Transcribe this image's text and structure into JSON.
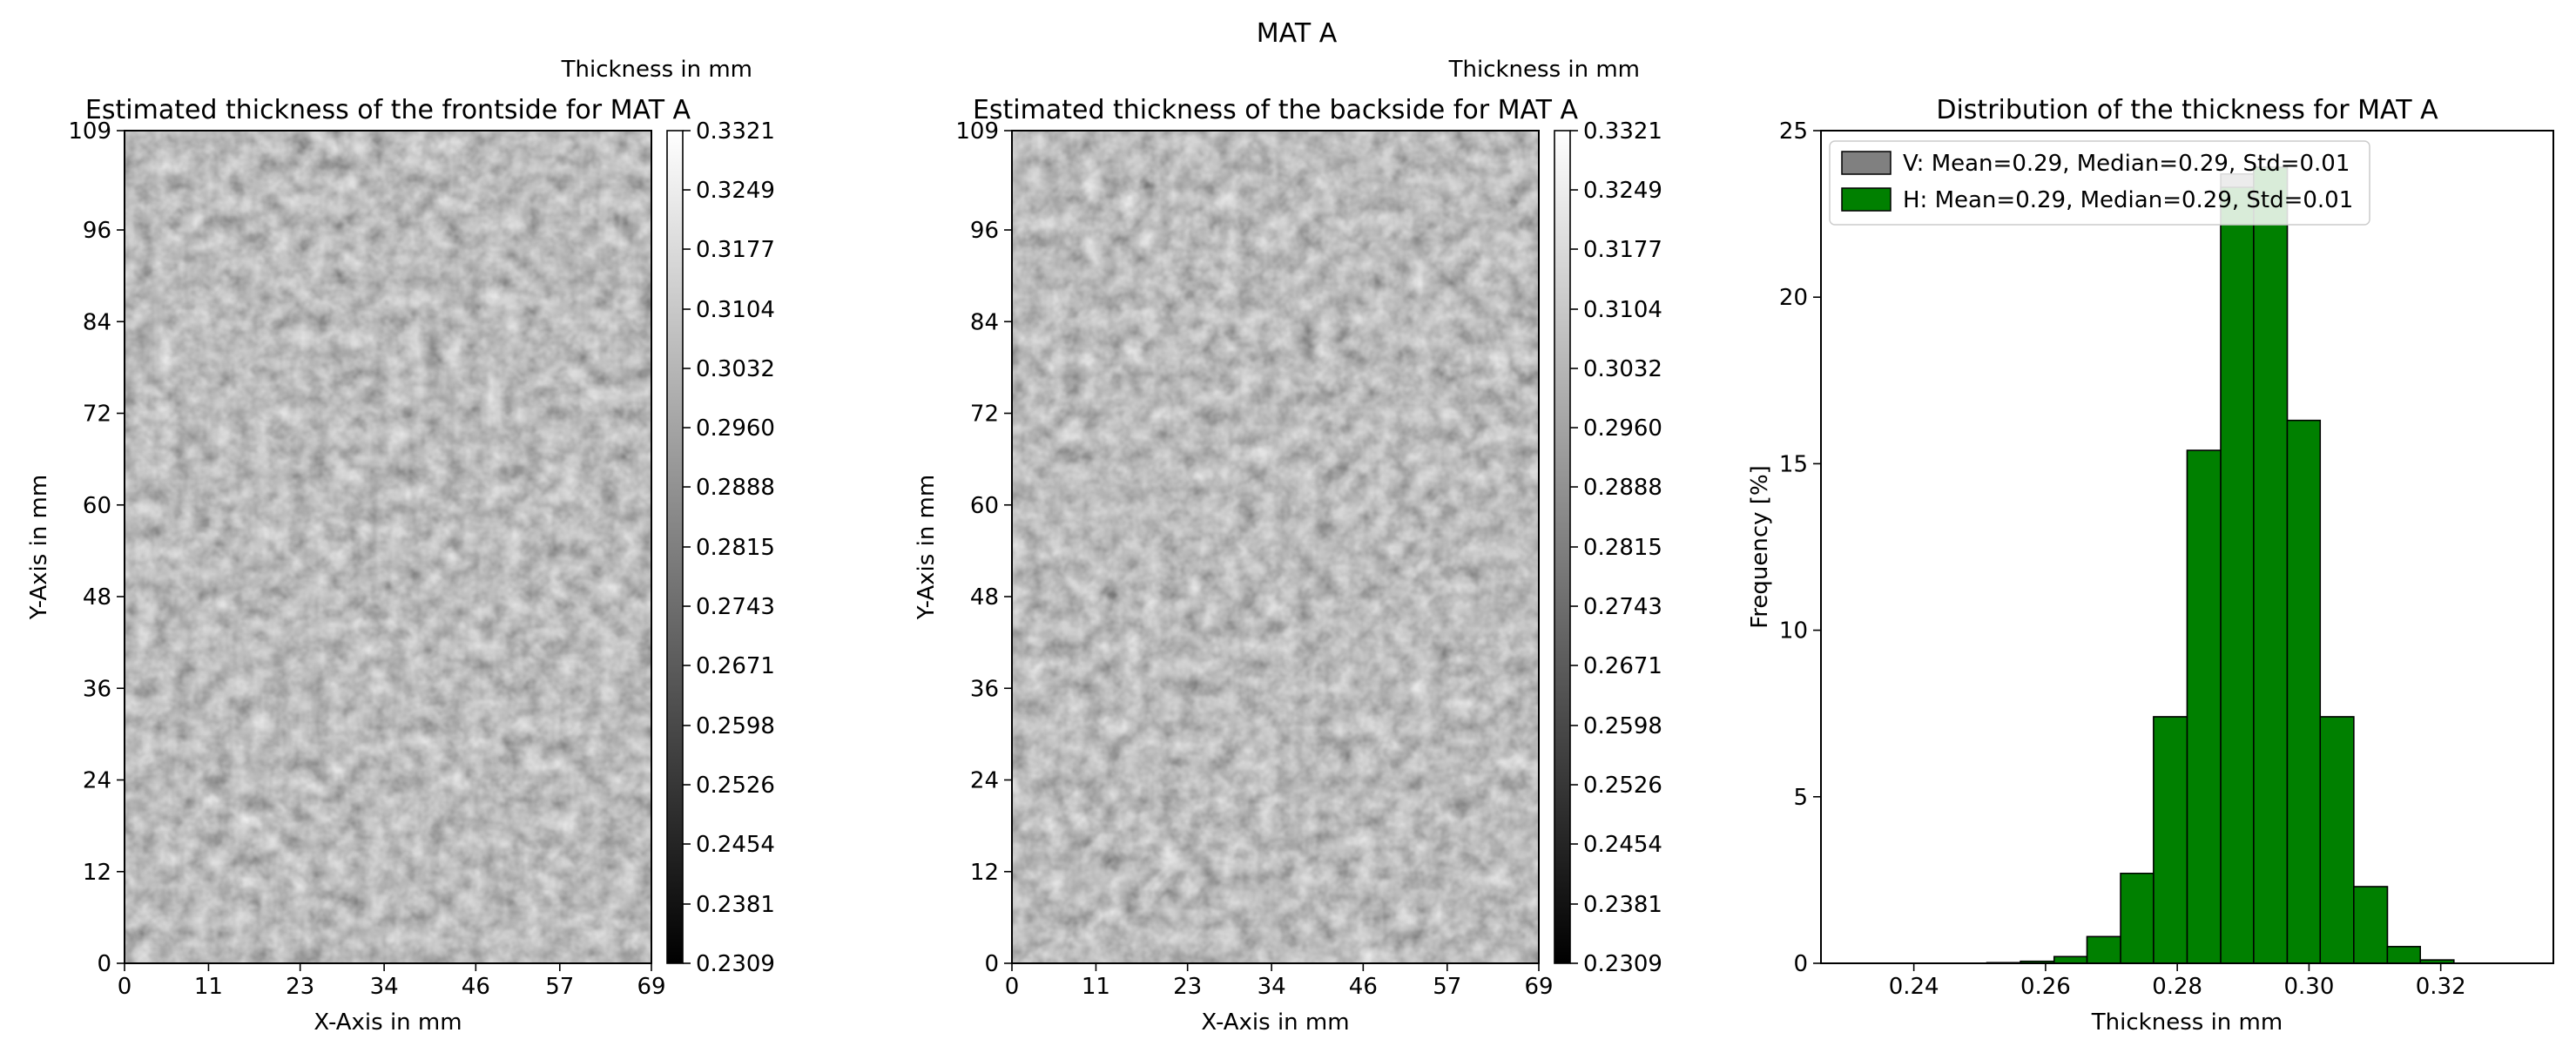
{
  "figure": {
    "suptitle": "MAT A"
  },
  "colors": {
    "hist_fill": "#008000",
    "hist_edge": "#000000",
    "legend_v_fill": "#808080"
  },
  "chart_data": [
    {
      "type": "heatmap",
      "title": "Estimated thickness of the frontside for MAT A",
      "xlabel": "X-Axis in mm",
      "ylabel": "Y-Axis in mm",
      "xlim": [
        0,
        69
      ],
      "ylim": [
        0,
        109
      ],
      "xticks": [
        "0",
        "11",
        "23",
        "34",
        "46",
        "57",
        "69"
      ],
      "yticks": [
        "0",
        "12",
        "24",
        "36",
        "48",
        "60",
        "72",
        "84",
        "96",
        "109"
      ],
      "colormap": "gray",
      "colorbar": {
        "label": "Thickness in mm",
        "range": [
          0.2309,
          0.3321
        ],
        "ticks": [
          "0.2309",
          "0.2381",
          "0.2454",
          "0.2526",
          "0.2598",
          "0.2671",
          "0.2743",
          "0.2815",
          "0.2888",
          "0.2960",
          "0.3032",
          "0.3104",
          "0.3177",
          "0.3249",
          "0.3321"
        ]
      }
    },
    {
      "type": "heatmap",
      "title": "Estimated thickness of the backside for MAT A",
      "xlabel": "X-Axis in mm",
      "ylabel": "Y-Axis in mm",
      "xlim": [
        0,
        69
      ],
      "ylim": [
        0,
        109
      ],
      "xticks": [
        "0",
        "11",
        "23",
        "34",
        "46",
        "57",
        "69"
      ],
      "yticks": [
        "0",
        "12",
        "24",
        "36",
        "48",
        "60",
        "72",
        "84",
        "96",
        "109"
      ],
      "colormap": "gray",
      "colorbar": {
        "label": "Thickness in mm",
        "range": [
          0.2309,
          0.3321
        ],
        "ticks": [
          "0.2309",
          "0.2381",
          "0.2454",
          "0.2526",
          "0.2598",
          "0.2671",
          "0.2743",
          "0.2815",
          "0.2888",
          "0.2960",
          "0.3032",
          "0.3104",
          "0.3177",
          "0.3249",
          "0.3321"
        ]
      }
    },
    {
      "type": "bar",
      "title": "Distribution of the thickness for MAT A",
      "xlabel": "Thickness in mm",
      "ylabel": "Frequency [%]",
      "xlim": [
        0.2259,
        0.3371
      ],
      "ylim": [
        0,
        25
      ],
      "xticks": [
        "0.24",
        "0.26",
        "0.28",
        "0.30",
        "0.32"
      ],
      "yticks": [
        "0",
        "5",
        "10",
        "15",
        "20",
        "25"
      ],
      "legend": "top-left",
      "bin_edges": [
        0.2309,
        0.236,
        0.241,
        0.2461,
        0.2511,
        0.2562,
        0.2613,
        0.2663,
        0.2714,
        0.2764,
        0.2815,
        0.2866,
        0.2916,
        0.2967,
        0.3017,
        0.3068,
        0.3119,
        0.3169,
        0.322,
        0.327,
        0.3321
      ],
      "series": [
        {
          "name": "V: Mean=0.29, Median=0.29, Std=0.01",
          "values": [
            0,
            0,
            0,
            0,
            0.02,
            0.06,
            0.2,
            0.8,
            2.7,
            7.4,
            15.4,
            23.7,
            23.9,
            16.3,
            7.4,
            2.3,
            0.5,
            0.1,
            0,
            0
          ]
        },
        {
          "name": "H: Mean=0.29, Median=0.29, Std=0.01",
          "values": [
            0,
            0,
            0,
            0,
            0.02,
            0.06,
            0.2,
            0.8,
            2.7,
            7.4,
            15.4,
            23.3,
            23.9,
            16.3,
            7.4,
            2.3,
            0.5,
            0.1,
            0,
            0
          ]
        }
      ]
    }
  ]
}
